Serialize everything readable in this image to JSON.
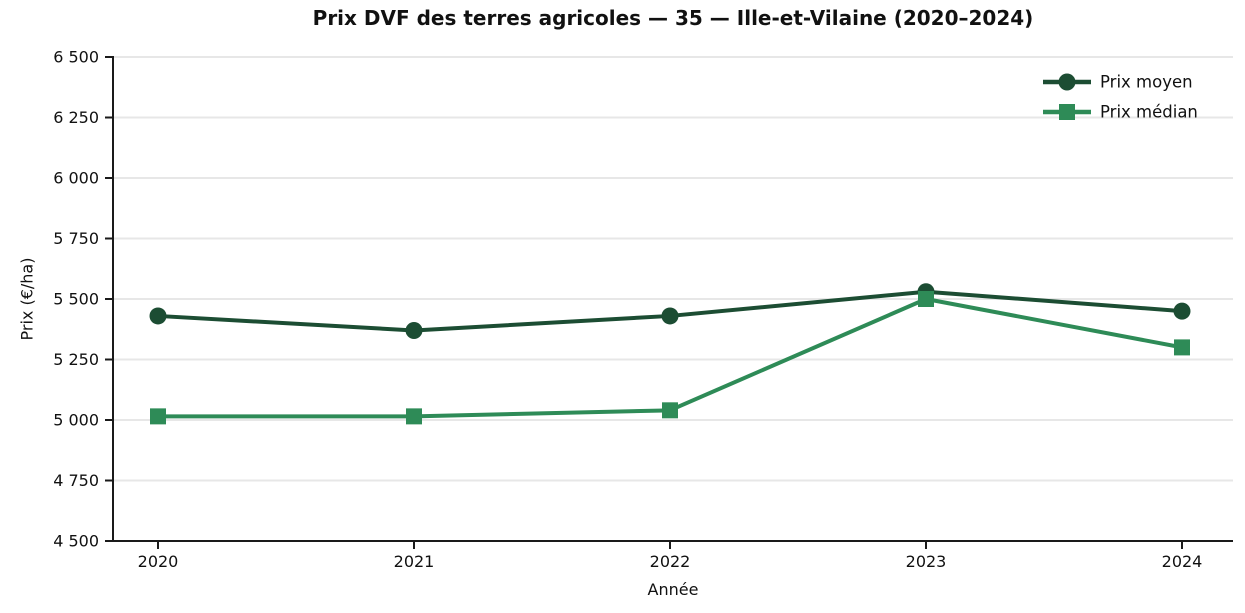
{
  "title": "Prix DVF des terres agricoles — 35 — Ille-et-Vilaine (2020–2024)",
  "chart_data": {
    "type": "line",
    "categories": [
      "2020",
      "2021",
      "2022",
      "2023",
      "2024"
    ],
    "series": [
      {
        "name": "Prix moyen",
        "values": [
          5430,
          5370,
          5430,
          5530,
          5450
        ],
        "color": "#1c4d33",
        "marker": "circle"
      },
      {
        "name": "Prix médian",
        "values": [
          5015,
          5015,
          5040,
          5500,
          5300
        ],
        "color": "#2e8b57",
        "marker": "square"
      }
    ],
    "xlabel": "Année",
    "ylabel": "Prix (€/ha)",
    "ylim": [
      4500,
      6500
    ],
    "ytick_step": 250,
    "ytick_labels": [
      "4 500",
      "4 750",
      "5 000",
      "5 250",
      "5 500",
      "5 750",
      "6 000",
      "6 250",
      "6 500"
    ],
    "grid": "horizontal",
    "grid_color": "#e7e7e7",
    "axis_color": "#1a1a1a",
    "legend_position": "top-right"
  }
}
